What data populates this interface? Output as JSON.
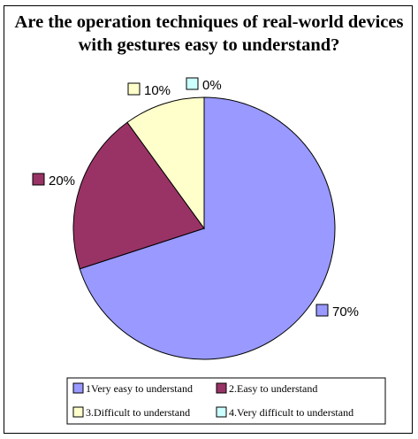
{
  "chart_data": {
    "type": "pie",
    "title_lines": [
      "Are the operation techniques of real-world devices",
      "with gestures easy to understand?"
    ],
    "slices": [
      {
        "label": "1Very easy to understand",
        "value": 70,
        "value_label": "70%",
        "color": "#9999ff"
      },
      {
        "label": "2.Easy to understand",
        "value": 20,
        "value_label": "20%",
        "color": "#993366"
      },
      {
        "label": "3.Difficult to understand",
        "value": 10,
        "value_label": "10%",
        "color": "#ffffcc"
      },
      {
        "label": "4.Very difficult to understand",
        "value": 0,
        "value_label": "0%",
        "color": "#ccffff"
      }
    ],
    "start": "12 o'clock",
    "direction": "clockwise",
    "legend_position": "bottom"
  }
}
